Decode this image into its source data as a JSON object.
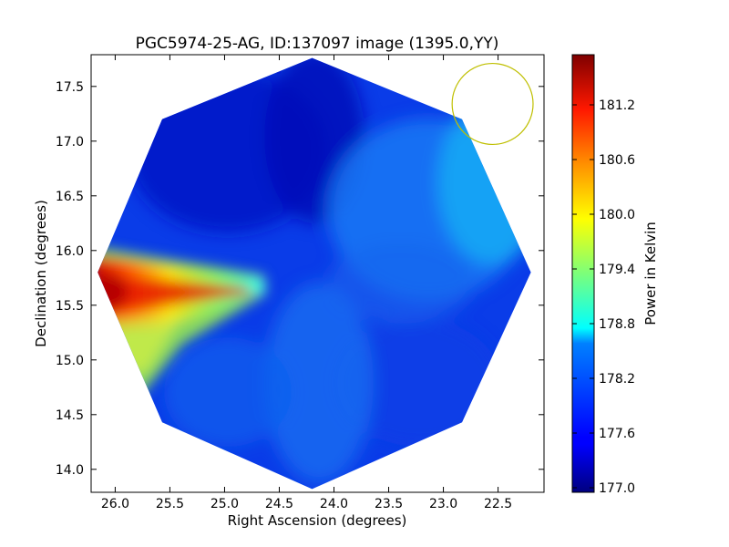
{
  "chart_data": {
    "type": "heatmap",
    "title": "PGC5974-25-AG, ID:137097 image (1395.0,YY)",
    "xlabel": "Right Ascension (degrees)",
    "ylabel": "Declination (degrees)",
    "xlim": [
      26.22,
      22.08
    ],
    "ylim": [
      13.79,
      17.79
    ],
    "x_ticks": [
      26.0,
      25.5,
      25.0,
      24.5,
      24.0,
      23.5,
      23.0,
      22.5
    ],
    "x_tick_labels": [
      "26.0",
      "25.5",
      "25.0",
      "24.5",
      "24.0",
      "23.5",
      "23.0",
      "22.5"
    ],
    "y_ticks": [
      14.0,
      14.5,
      15.0,
      15.5,
      16.0,
      16.5,
      17.0,
      17.5
    ],
    "y_tick_labels": [
      "14.0",
      "14.5",
      "15.0",
      "15.5",
      "16.0",
      "16.5",
      "17.0",
      "17.5"
    ],
    "colorbar": {
      "label": "Power in Kelvin",
      "colormap": "jet",
      "vmin": 176.95,
      "vmax": 181.75,
      "ticks": [
        177.0,
        177.6,
        178.2,
        178.8,
        179.4,
        180.0,
        180.6,
        181.2
      ],
      "tick_labels": [
        "177.0",
        "177.6",
        "178.2",
        "178.8",
        "179.4",
        "180.0",
        "180.6",
        "181.2"
      ]
    },
    "image_region": {
      "shape": "octagon",
      "center_ra": 24.15,
      "center_dec": 15.79,
      "vertices": [
        [
          24.2,
          17.76
        ],
        [
          25.57,
          17.2
        ],
        [
          26.16,
          15.8
        ],
        [
          25.57,
          14.43
        ],
        [
          24.2,
          13.82
        ],
        [
          22.83,
          14.43
        ],
        [
          22.2,
          15.8
        ],
        [
          22.83,
          17.2
        ]
      ]
    },
    "background_level": 177.45,
    "features": [
      {
        "kind": "bright_plume",
        "peak_ra": 26.0,
        "peak_dec": 15.52,
        "peak_value": 181.3,
        "tip_ra": 24.7,
        "tip_dec": 15.6
      },
      {
        "kind": "dark_sector",
        "ra": 24.6,
        "dec": 16.9,
        "value": 177.1
      },
      {
        "kind": "dark_sector",
        "ra": 23.35,
        "dec": 14.9,
        "value": 177.3
      },
      {
        "kind": "bright_edge",
        "ra": 22.45,
        "dec": 16.6,
        "value": 178.2
      }
    ],
    "beam_circle": {
      "ra": 22.55,
      "dec": 17.34,
      "radius_deg": 0.37,
      "color": "#bfbf00"
    }
  }
}
